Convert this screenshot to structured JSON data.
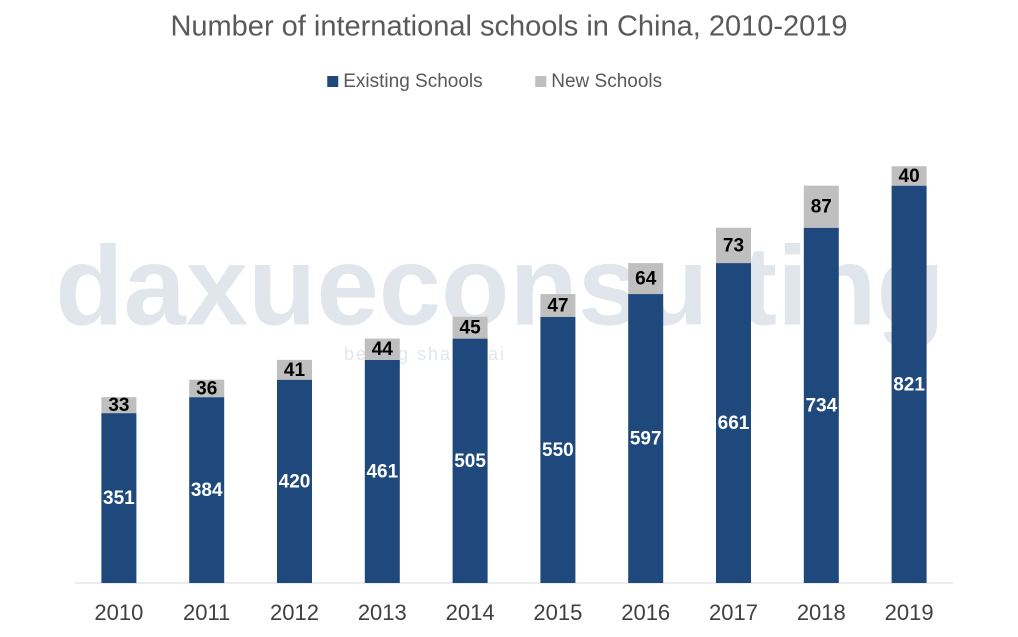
{
  "chart_data": {
    "type": "stacked_bar",
    "title": "Number of international schools in China, 2010-2019",
    "watermark": "daxueconsulting",
    "watermark_subtitle": "beijing shanghai",
    "categories": [
      "2010",
      "2011",
      "2012",
      "2013",
      "2014",
      "2015",
      "2016",
      "2017",
      "2018",
      "2019"
    ],
    "series": [
      {
        "name": "Existing Schools",
        "color": "#1f497d",
        "label_color": "#ffffff",
        "values": [
          351,
          384,
          420,
          461,
          505,
          550,
          597,
          661,
          734,
          821
        ]
      },
      {
        "name": "New Schools",
        "color": "#bfbfbf",
        "label_color": "#000000",
        "values": [
          33,
          36,
          41,
          44,
          45,
          47,
          64,
          73,
          87,
          40
        ]
      }
    ],
    "ylim": [
      0,
      1000
    ],
    "legend": "top"
  }
}
